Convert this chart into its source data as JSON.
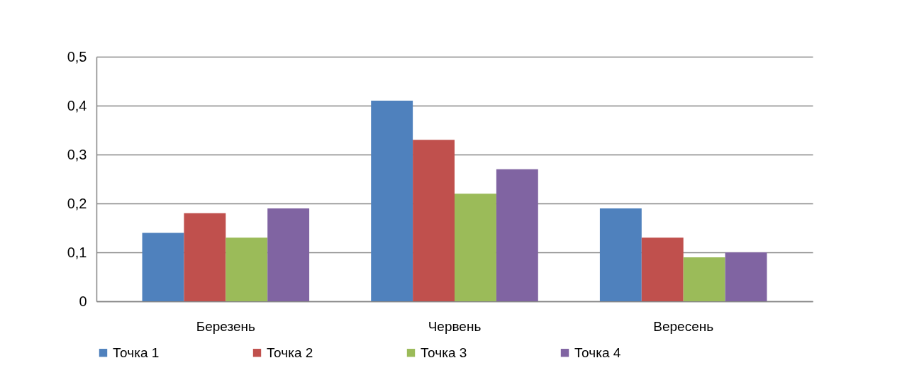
{
  "chart_data": {
    "type": "bar",
    "categories": [
      "Березень",
      "Червень",
      "Вересень"
    ],
    "series": [
      {
        "name": "Точка 1",
        "color": "#4f81bd",
        "values": [
          0.14,
          0.41,
          0.19
        ]
      },
      {
        "name": "Точка 2",
        "color": "#c0504d",
        "values": [
          0.18,
          0.33,
          0.13
        ]
      },
      {
        "name": "Точка 3",
        "color": "#9bbb59",
        "values": [
          0.13,
          0.22,
          0.09
        ]
      },
      {
        "name": "Точка 4",
        "color": "#8064a2",
        "values": [
          0.19,
          0.27,
          0.1
        ]
      }
    ],
    "ylim": [
      0,
      0.5
    ],
    "yticks": [
      0,
      {
        "value": 0.1,
        "label": "0,1"
      },
      {
        "value": 0.2,
        "label": "0,2"
      },
      {
        "value": 0.3,
        "label": "0,3"
      },
      {
        "value": 0.4,
        "label": "0,4"
      },
      {
        "value": 0.5,
        "label": "0,5"
      }
    ],
    "grid": "y",
    "legend": "bottom"
  }
}
